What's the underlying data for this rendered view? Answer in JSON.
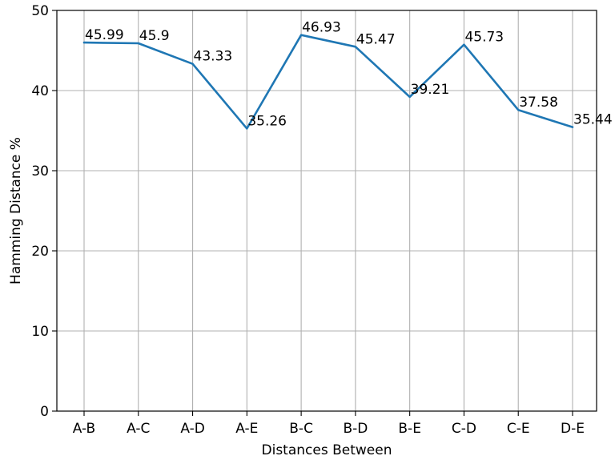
{
  "chart_data": {
    "type": "line",
    "title": "",
    "xlabel": "Distances Between",
    "ylabel": "Hamming Distance %",
    "categories": [
      "A-B",
      "A-C",
      "A-D",
      "A-E",
      "B-C",
      "B-D",
      "B-E",
      "C-D",
      "C-E",
      "D-E"
    ],
    "series": [
      {
        "color": "#1f77b4",
        "values": [
          45.99,
          45.9,
          43.33,
          35.26,
          46.93,
          45.47,
          39.21,
          45.73,
          37.58,
          35.44
        ]
      }
    ],
    "data_labels": [
      "45.99",
      "45.9",
      "43.33",
      "35.26",
      "46.93",
      "45.47",
      "39.21",
      "45.73",
      "37.58",
      "35.44"
    ],
    "ylim": [
      0,
      50
    ],
    "yticks": [
      0,
      10,
      20,
      30,
      40,
      50
    ],
    "grid": true,
    "legend": "none"
  }
}
